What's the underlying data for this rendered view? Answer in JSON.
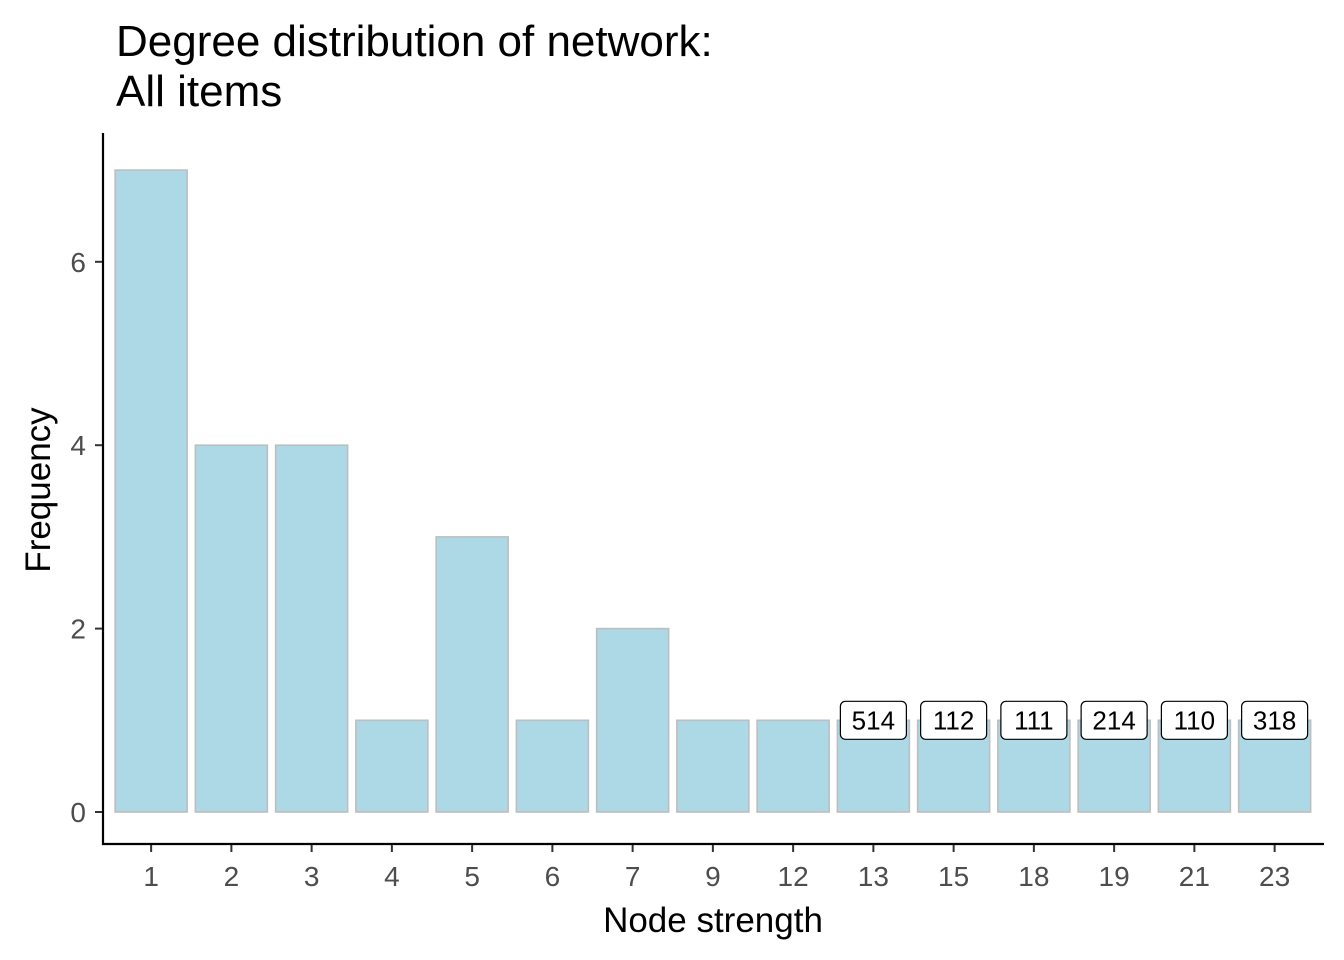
{
  "chart_data": {
    "type": "bar",
    "title": "Degree distribution of network:",
    "subtitle": "All items",
    "xlabel": "Node strength",
    "ylabel": "Frequency",
    "categories": [
      "1",
      "2",
      "3",
      "4",
      "5",
      "6",
      "7",
      "9",
      "12",
      "13",
      "15",
      "18",
      "19",
      "21",
      "23"
    ],
    "values": [
      7,
      4,
      4,
      1,
      3,
      1,
      2,
      1,
      1,
      1,
      1,
      1,
      1,
      1,
      1
    ],
    "bar_labels": [
      "",
      "",
      "",
      "",
      "",
      "",
      "",
      "",
      "",
      "514",
      "112",
      "111",
      "214",
      "110",
      "318"
    ],
    "ylim": [
      0,
      7
    ],
    "yticks": [
      0,
      2,
      4,
      6
    ],
    "grid": false,
    "bar_color": "#add8e6",
    "bar_outline_color": "#bebebe"
  }
}
